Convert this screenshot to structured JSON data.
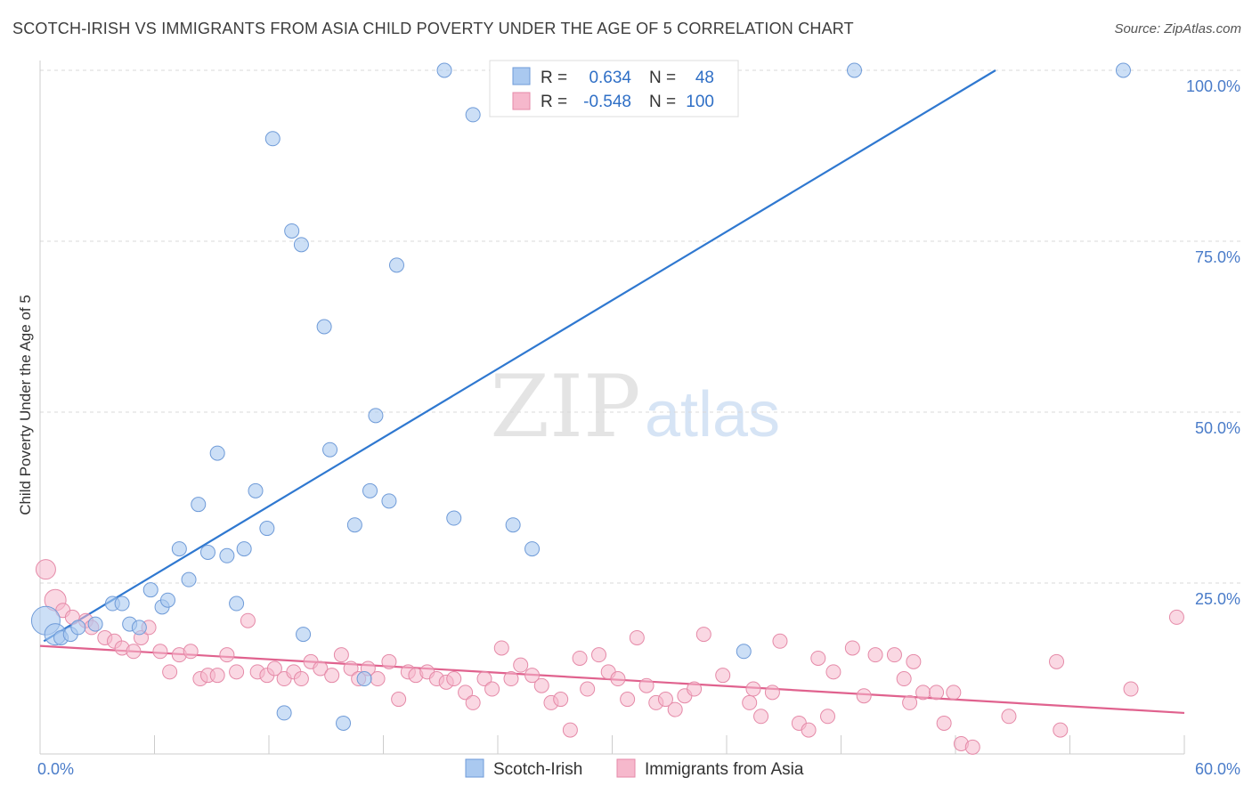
{
  "title": "SCOTCH-IRISH VS IMMIGRANTS FROM ASIA CHILD POVERTY UNDER THE AGE OF 5 CORRELATION CHART",
  "source": "Source: ZipAtlas.com",
  "watermark": {
    "zip": "ZIP",
    "atlas": "atlas"
  },
  "legend_top": {
    "rows": [
      {
        "r_label": "R = ",
        "r_value": "0.634",
        "n_label": "N = ",
        "n_value": "48"
      },
      {
        "r_label": "R = ",
        "r_value": "-0.548",
        "n_label": "N = ",
        "n_value": "100"
      }
    ]
  },
  "legend_bottom": [
    "Scotch-Irish",
    "Immigrants from Asia"
  ],
  "colors": {
    "series1_fill": "#aac9f0",
    "series1_stroke": "#6f9bd8",
    "series1_line": "#2f78d0",
    "series2_fill": "#f6b8cc",
    "series2_stroke": "#e58aa8",
    "series2_line": "#e0628e",
    "tick_text": "#4a7cc9",
    "grid": "#d9d9d9"
  },
  "chart_data": {
    "type": "scatter",
    "xlabel": "",
    "ylabel": "Child Poverty Under the Age of 5",
    "xlim": [
      0,
      60
    ],
    "ylim": [
      0,
      102
    ],
    "x_tick_labels": [
      {
        "value": 0,
        "label": "0.0%"
      },
      {
        "value": 60,
        "label": "60.0%"
      }
    ],
    "y_tick_labels": [
      {
        "value": 25,
        "label": "25.0%"
      },
      {
        "value": 50,
        "label": "50.0%"
      },
      {
        "value": 75,
        "label": "75.0%"
      },
      {
        "value": 100,
        "label": "100.0%"
      }
    ],
    "grid": true,
    "legend_position": "top-center",
    "series": [
      {
        "name": "Scotch-Irish",
        "trend": {
          "x": [
            0.2,
            50.1
          ],
          "y": [
            16.5,
            100.0
          ]
        },
        "points": [
          [
            0.3,
            19.5
          ],
          [
            0.8,
            17.5
          ],
          [
            1.1,
            17.0
          ],
          [
            1.6,
            17.5
          ],
          [
            2.0,
            18.5
          ],
          [
            2.9,
            19.0
          ],
          [
            3.8,
            22.0
          ],
          [
            4.3,
            22.0
          ],
          [
            4.7,
            19.0
          ],
          [
            5.2,
            18.5
          ],
          [
            5.8,
            24.0
          ],
          [
            6.4,
            21.5
          ],
          [
            6.7,
            22.5
          ],
          [
            7.3,
            30.0
          ],
          [
            7.8,
            25.5
          ],
          [
            8.3,
            36.5
          ],
          [
            8.8,
            29.5
          ],
          [
            9.3,
            44.0
          ],
          [
            9.8,
            29.0
          ],
          [
            10.3,
            22.0
          ],
          [
            10.7,
            30.0
          ],
          [
            11.3,
            38.5
          ],
          [
            11.9,
            33.0
          ],
          [
            12.2,
            90.0
          ],
          [
            12.8,
            6.0
          ],
          [
            13.2,
            76.5
          ],
          [
            13.7,
            74.5
          ],
          [
            13.8,
            17.5
          ],
          [
            14.9,
            62.5
          ],
          [
            15.2,
            44.5
          ],
          [
            15.9,
            4.5
          ],
          [
            16.5,
            33.5
          ],
          [
            17.0,
            11.0
          ],
          [
            17.3,
            38.5
          ],
          [
            17.6,
            49.5
          ],
          [
            18.3,
            37.0
          ],
          [
            18.7,
            71.5
          ],
          [
            21.2,
            100.0
          ],
          [
            21.7,
            34.5
          ],
          [
            22.7,
            93.5
          ],
          [
            24.8,
            33.5
          ],
          [
            25.8,
            30.0
          ],
          [
            32.5,
            100.0
          ],
          [
            36.9,
            15.0
          ],
          [
            42.7,
            100.0
          ],
          [
            56.8,
            100.0
          ]
        ]
      },
      {
        "name": "Immigrants from Asia",
        "trend": {
          "x": [
            0.0,
            60.0
          ],
          "y": [
            15.8,
            6.0
          ]
        },
        "points": [
          [
            0.3,
            27.0
          ],
          [
            0.8,
            22.5
          ],
          [
            1.2,
            21.0
          ],
          [
            1.7,
            20.0
          ],
          [
            2.4,
            19.5
          ],
          [
            2.7,
            18.5
          ],
          [
            3.4,
            17.0
          ],
          [
            3.9,
            16.5
          ],
          [
            4.3,
            15.5
          ],
          [
            4.9,
            15.0
          ],
          [
            5.3,
            17.0
          ],
          [
            5.7,
            18.5
          ],
          [
            6.3,
            15.0
          ],
          [
            6.8,
            12.0
          ],
          [
            7.3,
            14.5
          ],
          [
            7.9,
            15.0
          ],
          [
            8.4,
            11.0
          ],
          [
            8.8,
            11.5
          ],
          [
            9.3,
            11.5
          ],
          [
            9.8,
            14.5
          ],
          [
            10.3,
            12.0
          ],
          [
            10.9,
            19.5
          ],
          [
            11.4,
            12.0
          ],
          [
            11.9,
            11.5
          ],
          [
            12.3,
            12.5
          ],
          [
            12.8,
            11.0
          ],
          [
            13.3,
            12.0
          ],
          [
            13.7,
            11.0
          ],
          [
            14.2,
            13.5
          ],
          [
            14.7,
            12.5
          ],
          [
            15.3,
            11.5
          ],
          [
            15.8,
            14.5
          ],
          [
            16.3,
            12.5
          ],
          [
            16.7,
            11.0
          ],
          [
            17.2,
            12.5
          ],
          [
            17.7,
            11.0
          ],
          [
            18.3,
            13.5
          ],
          [
            18.8,
            8.0
          ],
          [
            19.3,
            12.0
          ],
          [
            19.7,
            11.5
          ],
          [
            20.3,
            12.0
          ],
          [
            20.8,
            11.0
          ],
          [
            21.3,
            10.5
          ],
          [
            21.7,
            11.0
          ],
          [
            22.3,
            9.0
          ],
          [
            22.7,
            7.5
          ],
          [
            23.3,
            11.0
          ],
          [
            23.7,
            9.5
          ],
          [
            24.2,
            15.5
          ],
          [
            24.7,
            11.0
          ],
          [
            25.2,
            13.0
          ],
          [
            25.8,
            11.5
          ],
          [
            26.3,
            10.0
          ],
          [
            26.8,
            7.5
          ],
          [
            27.3,
            8.0
          ],
          [
            27.8,
            3.5
          ],
          [
            28.3,
            14.0
          ],
          [
            28.7,
            9.5
          ],
          [
            29.3,
            14.5
          ],
          [
            29.8,
            12.0
          ],
          [
            30.3,
            11.0
          ],
          [
            30.8,
            8.0
          ],
          [
            31.3,
            17.0
          ],
          [
            31.8,
            10.0
          ],
          [
            32.3,
            7.5
          ],
          [
            32.8,
            8.0
          ],
          [
            33.3,
            6.5
          ],
          [
            33.8,
            8.5
          ],
          [
            34.3,
            9.5
          ],
          [
            34.8,
            17.5
          ],
          [
            35.8,
            11.5
          ],
          [
            37.2,
            7.5
          ],
          [
            37.4,
            9.5
          ],
          [
            37.8,
            5.5
          ],
          [
            38.4,
            9.0
          ],
          [
            38.8,
            16.5
          ],
          [
            39.8,
            4.5
          ],
          [
            40.3,
            3.5
          ],
          [
            40.8,
            14.0
          ],
          [
            41.6,
            12.0
          ],
          [
            41.3,
            5.5
          ],
          [
            42.6,
            15.5
          ],
          [
            43.2,
            8.5
          ],
          [
            43.8,
            14.5
          ],
          [
            44.8,
            14.5
          ],
          [
            45.3,
            11.0
          ],
          [
            45.8,
            13.5
          ],
          [
            45.6,
            7.5
          ],
          [
            46.3,
            9.0
          ],
          [
            47.0,
            9.0
          ],
          [
            47.4,
            4.5
          ],
          [
            47.9,
            9.0
          ],
          [
            48.3,
            1.5
          ],
          [
            48.9,
            1.0
          ],
          [
            50.8,
            5.5
          ],
          [
            53.3,
            13.5
          ],
          [
            53.5,
            3.5
          ],
          [
            57.2,
            9.5
          ],
          [
            59.6,
            20.0
          ]
        ]
      }
    ]
  }
}
